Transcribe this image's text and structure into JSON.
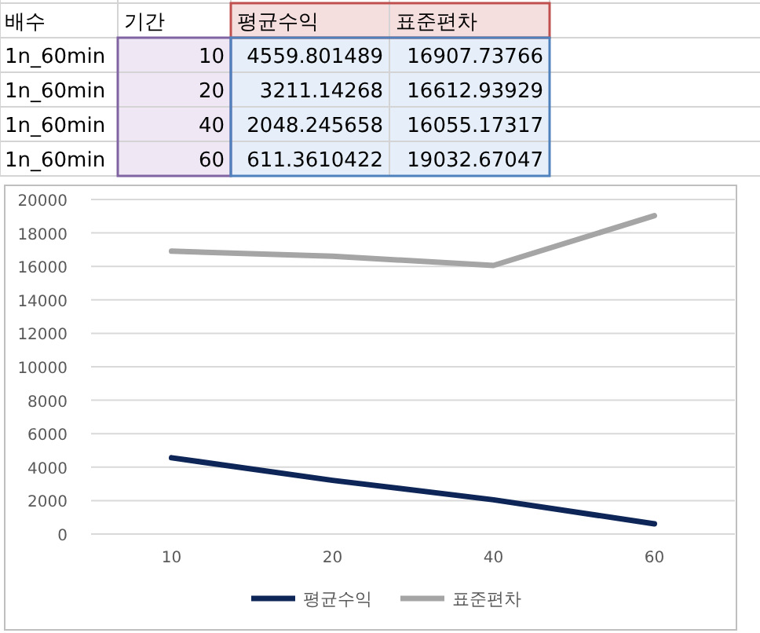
{
  "chart_data": {
    "type": "line",
    "categories": [
      "10",
      "20",
      "40",
      "60"
    ],
    "series": [
      {
        "name": "평균수익",
        "color": "#0e2657",
        "values": [
          4559.801489,
          3211.14268,
          2048.245658,
          611.3610422
        ]
      },
      {
        "name": "표준편차",
        "color": "#a5a5a5",
        "values": [
          16907.73766,
          16612.93929,
          16055.17317,
          19032.67047
        ]
      }
    ],
    "ylim": [
      0,
      20000
    ],
    "yticks": [
      0,
      2000,
      4000,
      6000,
      8000,
      10000,
      12000,
      14000,
      16000,
      18000,
      20000
    ],
    "grid": "y",
    "legend": "bottom",
    "line_style": "solid",
    "marker": "none",
    "annotations": [
      "배수",
      "기간",
      "1n_60min",
      "4559.801489",
      "16907.73766",
      "1n_60min",
      "3211.14268",
      "16612.93929",
      "1n_60min",
      "2048.245658",
      "16055.17317",
      "1n_60min",
      "611.3610422",
      "19032.67047"
    ]
  }
}
